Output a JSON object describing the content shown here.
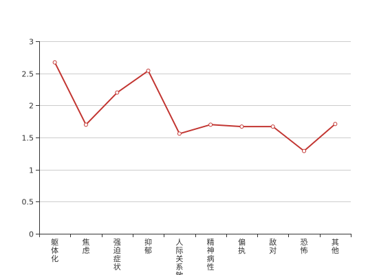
{
  "chart_data": {
    "type": "line",
    "categories": [
      "躯体化",
      "焦虑",
      "强迫症状",
      "抑郁",
      "人际关系敏感",
      "精神病性",
      "偏执",
      "敌对",
      "恐怖",
      "其他"
    ],
    "series": [
      {
        "values": [
          2.67,
          1.7,
          2.2,
          2.54,
          1.56,
          1.7,
          1.67,
          1.67,
          1.29,
          1.71
        ]
      }
    ],
    "yticks": [
      "0",
      "0.5",
      "1",
      "1.5",
      "2",
      "2.5",
      "3"
    ],
    "ylim": [
      0,
      3
    ],
    "grid": true,
    "title": "",
    "xlabel": "",
    "ylabel": "",
    "colors": {
      "line": "#c23531",
      "grid": "#cccccc",
      "axis": "#333333",
      "point_fill": "#ffffff"
    }
  }
}
